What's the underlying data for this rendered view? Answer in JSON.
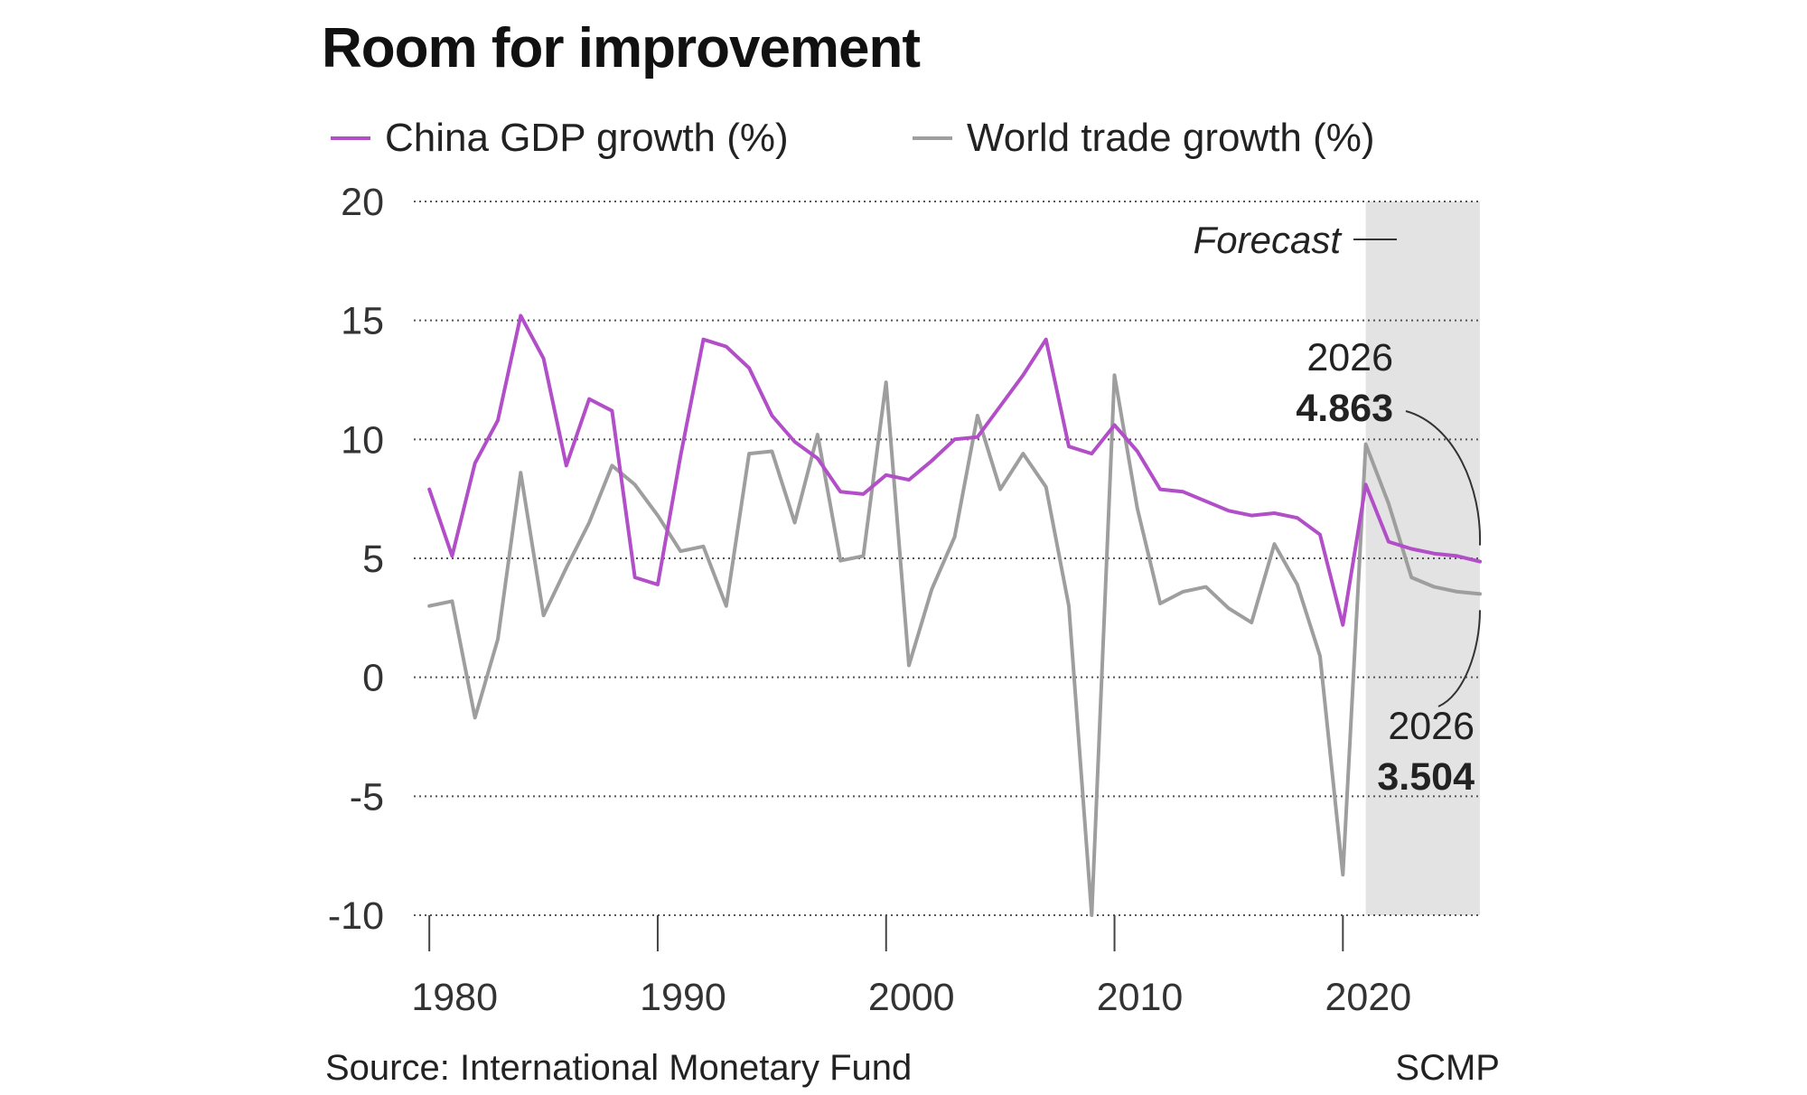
{
  "chart_data": {
    "type": "line",
    "title": "Room for improvement",
    "x": [
      1980,
      1981,
      1982,
      1983,
      1984,
      1985,
      1986,
      1987,
      1988,
      1989,
      1990,
      1991,
      1992,
      1993,
      1994,
      1995,
      1996,
      1997,
      1998,
      1999,
      2000,
      2001,
      2002,
      2003,
      2004,
      2005,
      2006,
      2007,
      2008,
      2009,
      2010,
      2011,
      2012,
      2013,
      2014,
      2015,
      2016,
      2017,
      2018,
      2019,
      2020,
      2021,
      2022,
      2023,
      2024,
      2025,
      2026
    ],
    "series": [
      {
        "name": "China GDP growth (%)",
        "color": "#b24ec8",
        "values": [
          7.9,
          5.1,
          9.0,
          10.8,
          15.2,
          13.4,
          8.9,
          11.7,
          11.2,
          4.2,
          3.9,
          9.3,
          14.2,
          13.9,
          13.0,
          11.0,
          9.9,
          9.2,
          7.8,
          7.7,
          8.5,
          8.3,
          9.1,
          10.0,
          10.1,
          11.4,
          12.7,
          14.2,
          9.7,
          9.4,
          10.6,
          9.5,
          7.9,
          7.8,
          7.4,
          7.0,
          6.8,
          6.9,
          6.7,
          6.0,
          2.2,
          8.1,
          5.7,
          5.4,
          5.2,
          5.1,
          4.863
        ]
      },
      {
        "name": "World trade growth (%)",
        "color": "#9e9e9e",
        "values": [
          3.0,
          3.2,
          -1.7,
          1.6,
          8.6,
          2.6,
          4.6,
          6.5,
          8.9,
          8.1,
          6.8,
          5.3,
          5.5,
          3.0,
          9.4,
          9.5,
          6.5,
          10.2,
          4.9,
          5.1,
          12.4,
          0.5,
          3.7,
          5.9,
          11.0,
          7.9,
          9.4,
          8.0,
          3.0,
          -10.0,
          12.7,
          7.1,
          3.1,
          3.6,
          3.8,
          2.9,
          2.3,
          5.6,
          3.9,
          0.9,
          -8.3,
          9.8,
          7.3,
          4.2,
          3.8,
          3.6,
          3.504
        ]
      }
    ],
    "xticks": [
      1980,
      1990,
      2000,
      2010,
      2020
    ],
    "yticks": [
      20,
      15,
      10,
      5,
      0,
      -5,
      -10
    ],
    "xlim": [
      1979.4,
      2026
    ],
    "ylim": [
      -10,
      20
    ],
    "grid": true,
    "legend_placement": "top",
    "forecast": {
      "label": "Forecast",
      "start": 2021,
      "end": 2026
    },
    "annotations": [
      {
        "year_label": "2026",
        "value_label": "4.863"
      },
      {
        "year_label": "2026",
        "value_label": "3.504"
      }
    ],
    "source": "Source: International Monetary Fund",
    "credit": "SCMP"
  }
}
